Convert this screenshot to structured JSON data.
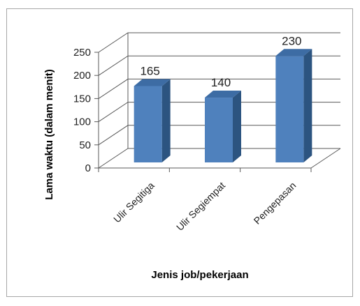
{
  "chart_data": {
    "type": "bar",
    "style": "3d-column",
    "categories": [
      "Ulir Segitiga",
      "Ulir Segiempat",
      "Pengepasan"
    ],
    "values": [
      165,
      140,
      230
    ],
    "data_labels": [
      "165",
      "140",
      "230"
    ],
    "ylim": [
      0,
      250
    ],
    "yticks": [
      0,
      50,
      100,
      150,
      200,
      250
    ],
    "ytick_labels": [
      "0",
      "50",
      "100",
      "150",
      "200",
      "250"
    ],
    "xlabel": "Jenis job/pekerjaan",
    "ylabel": "Lama waktu (dalam menit)",
    "grid": true,
    "legend": "none",
    "colors": {
      "bar_front": "#4f81bd",
      "bar_side": "#2c5480",
      "bar_top": "#3d6ca4",
      "grid": "#595959"
    }
  }
}
